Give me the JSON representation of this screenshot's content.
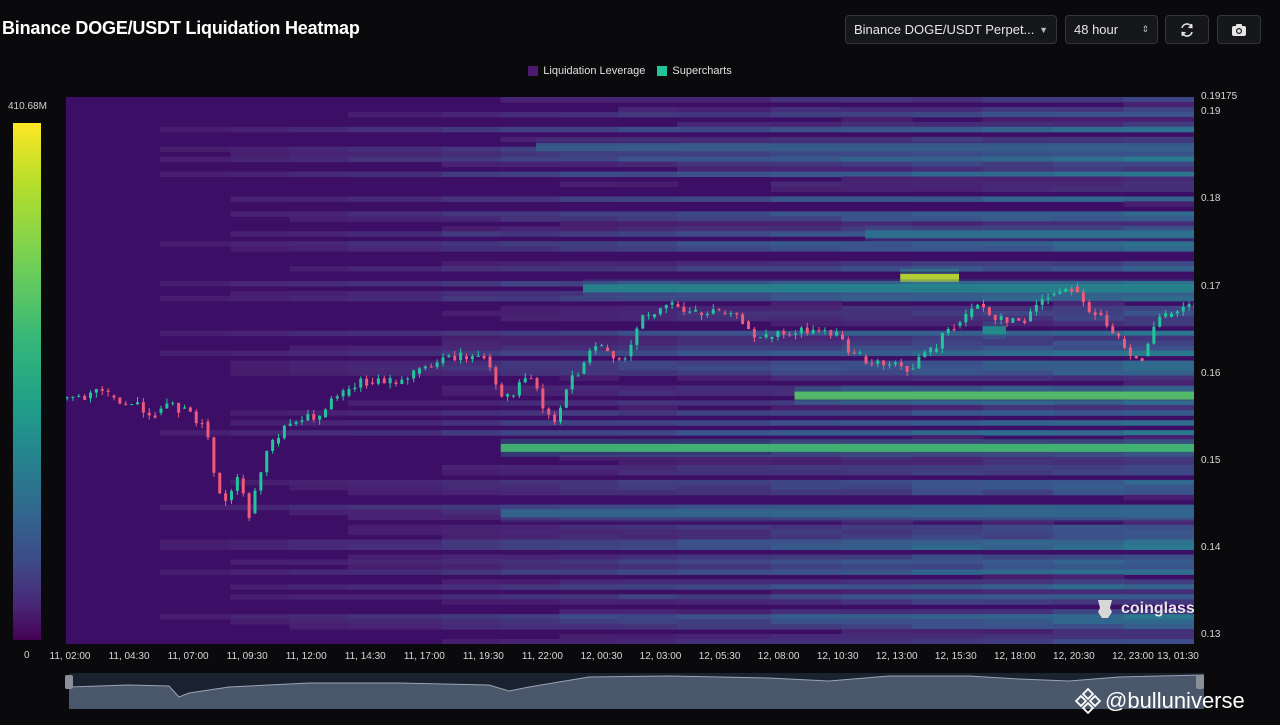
{
  "header": {
    "title": "Binance DOGE/USDT Liquidation Heatmap",
    "pair_select": "Binance DOGE/USDT Perpet...",
    "time_select": "48 hour",
    "refresh_icon": "refresh-icon",
    "camera_icon": "camera-icon"
  },
  "legend": {
    "items": [
      {
        "label": "Liquidation Leverage",
        "color": "#4b1a6e"
      },
      {
        "label": "Supercharts",
        "color": "#22c59a"
      }
    ]
  },
  "colorbar": {
    "max_label": "410.68M",
    "min_label": "0"
  },
  "watermarks": {
    "coinglass": "coinglass",
    "bulluniverse": "@bulluniverse"
  },
  "chart_data": {
    "type": "heatmap",
    "title": "Binance DOGE/USDT Liquidation Heatmap",
    "y_axis": {
      "ticks": [
        "0.19175",
        "0.19",
        "0.18",
        "0.17",
        "0.16",
        "0.15",
        "0.14",
        "0.13"
      ],
      "tick_values": [
        0.19175,
        0.19,
        0.18,
        0.17,
        0.16,
        0.15,
        0.14,
        0.13
      ],
      "ylim": [
        0.129,
        0.19175
      ]
    },
    "x_axis": {
      "ticks": [
        "11, 02:00",
        "11, 04:30",
        "11, 07:00",
        "11, 09:30",
        "11, 12:00",
        "11, 14:30",
        "11, 17:00",
        "11, 19:30",
        "11, 22:00",
        "12, 00:30",
        "12, 03:00",
        "12, 05:30",
        "12, 08:00",
        "12, 10:30",
        "12, 13:00",
        "12, 15:30",
        "12, 18:00",
        "12, 20:30",
        "12, 23:00",
        "13, 01:30"
      ]
    },
    "colorbar_range": [
      0,
      410.68
    ],
    "colorbar_unit": "M",
    "price_series": {
      "hours": [
        0,
        1,
        2,
        3,
        4,
        5,
        6,
        7,
        7.5,
        8,
        9,
        10,
        11,
        12,
        13,
        14,
        15,
        16,
        17,
        18,
        19,
        20,
        20.5,
        21,
        22,
        23,
        24,
        25,
        26,
        27,
        28,
        29,
        30,
        31,
        32,
        33,
        34,
        35,
        36,
        37,
        38,
        38.5,
        39,
        40,
        41,
        42,
        43,
        44,
        45,
        46,
        47,
        48
      ],
      "close": [
        0.1572,
        0.1575,
        0.1565,
        0.1555,
        0.156,
        0.1545,
        0.1455,
        0.148,
        0.144,
        0.152,
        0.1545,
        0.155,
        0.1575,
        0.159,
        0.159,
        0.16,
        0.1612,
        0.162,
        0.162,
        0.1575,
        0.1595,
        0.156,
        0.1545,
        0.16,
        0.163,
        0.162,
        0.1665,
        0.168,
        0.167,
        0.167,
        0.166,
        0.164,
        0.1645,
        0.165,
        0.1645,
        0.162,
        0.161,
        0.1605,
        0.1625,
        0.1655,
        0.1665,
        0.168,
        0.1665,
        0.166,
        0.169,
        0.17,
        0.167,
        0.164,
        0.162,
        0.1665,
        0.1675,
        0.169
      ]
    },
    "liquidation_bands": [
      {
        "price": 0.1515,
        "intensity": 0.78,
        "from_hour": 18.5,
        "to_hour": 48
      },
      {
        "price": 0.1575,
        "intensity": 0.82,
        "from_hour": 31,
        "to_hour": 48
      },
      {
        "price": 0.171,
        "intensity": 0.95,
        "from_hour": 35.5,
        "to_hour": 38
      },
      {
        "price": 0.1698,
        "intensity": 0.55,
        "from_hour": 22,
        "to_hour": 48
      },
      {
        "price": 0.165,
        "intensity": 0.6,
        "from_hour": 39,
        "to_hour": 40
      },
      {
        "price": 0.176,
        "intensity": 0.45,
        "from_hour": 34,
        "to_hour": 48
      },
      {
        "price": 0.144,
        "intensity": 0.4,
        "from_hour": 18.5,
        "to_hour": 48
      },
      {
        "price": 0.186,
        "intensity": 0.35,
        "from_hour": 20,
        "to_hour": 48
      }
    ]
  }
}
